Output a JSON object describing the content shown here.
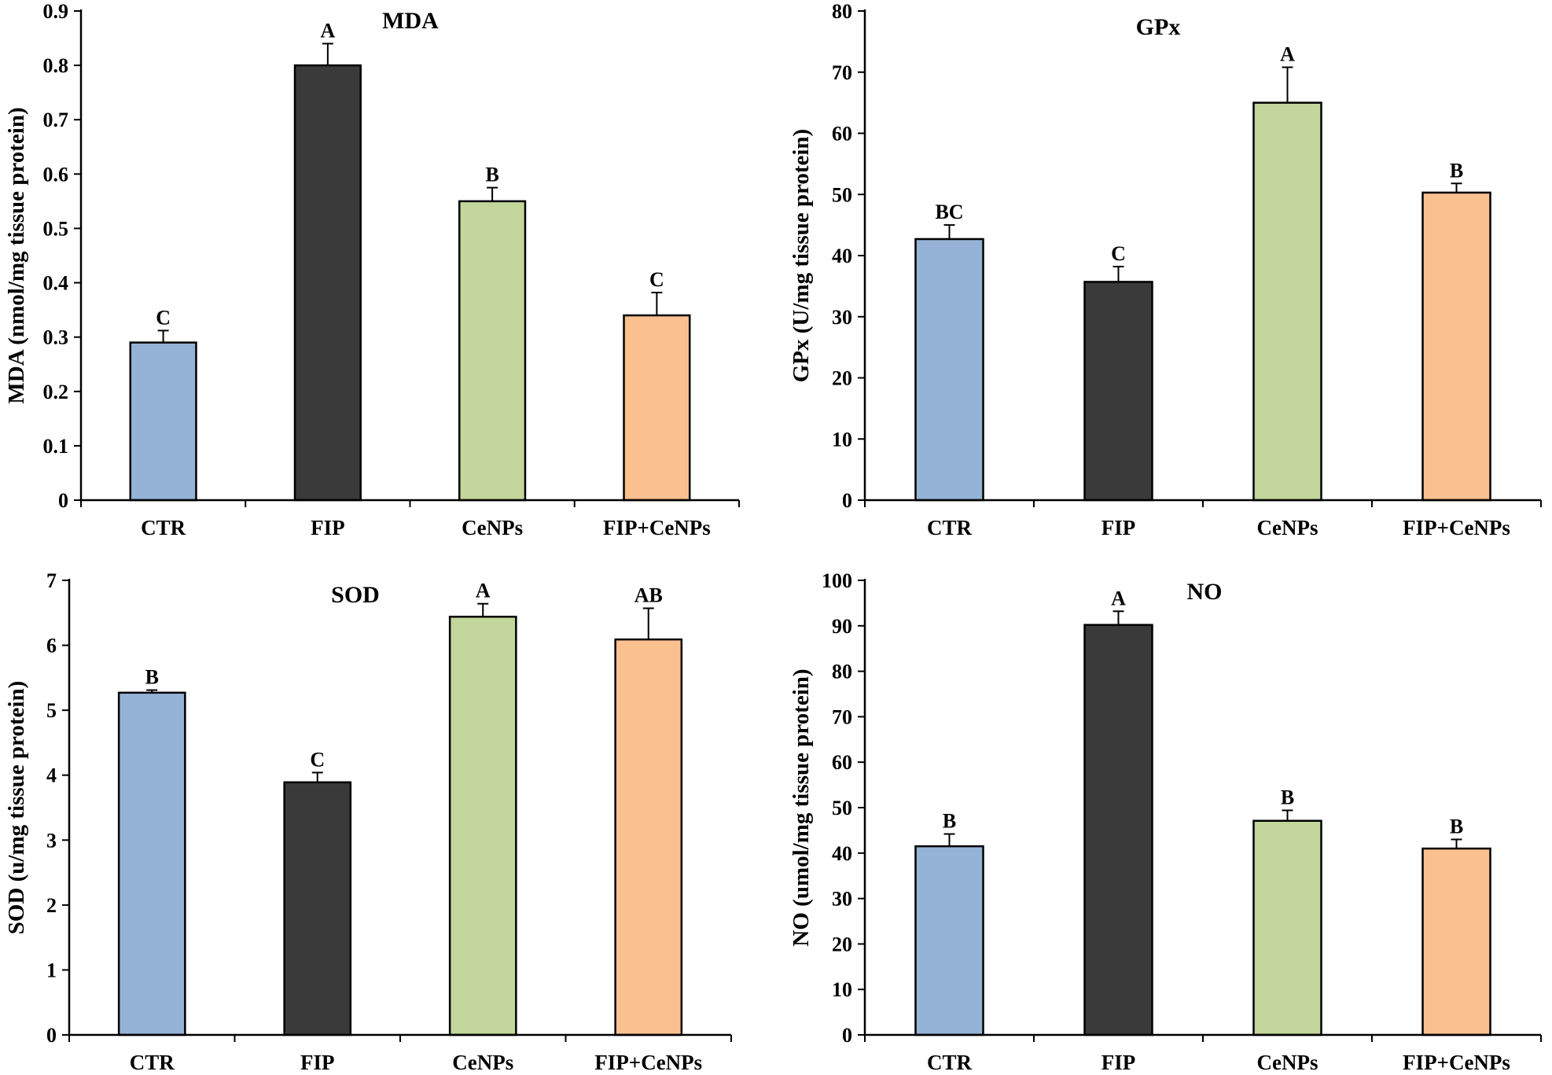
{
  "colors": {
    "CTR": "#95b3d7",
    "FIP": "#3a3a3a",
    "CeNPs": "#c3d69b",
    "FIP+CeNPs": "#fac090",
    "axis": "#000000"
  },
  "chart_data": [
    {
      "type": "bar",
      "title": "MDA",
      "ylabel": "MDA (nmol/mg tissue protein)",
      "xlabel": "",
      "categories": [
        "CTR",
        "FIP",
        "CeNPs",
        "FIP+CeNPs"
      ],
      "values": [
        0.29,
        0.8,
        0.55,
        0.34
      ],
      "errors": [
        0.022,
        0.04,
        0.025,
        0.042
      ],
      "significance": [
        "C",
        "A",
        "B",
        "C"
      ],
      "ylim": [
        0,
        0.9
      ],
      "yticks": [
        0,
        0.1,
        0.2,
        0.3,
        0.4,
        0.5,
        0.6,
        0.7,
        0.8,
        0.9
      ],
      "ytick_labels": [
        "0",
        "0.1",
        "0.2",
        "0.3",
        "0.4",
        "0.5",
        "0.6",
        "0.7",
        "0.8",
        "0.9"
      ]
    },
    {
      "type": "bar",
      "title": "GPx",
      "ylabel": "GPx (U/mg tissue protein)",
      "xlabel": "",
      "categories": [
        "CTR",
        "FIP",
        "CeNPs",
        "FIP+CeNPs"
      ],
      "values": [
        42.7,
        35.7,
        65.0,
        50.3
      ],
      "errors": [
        2.3,
        2.5,
        5.8,
        1.5
      ],
      "significance": [
        "BC",
        "C",
        "A",
        "B"
      ],
      "ylim": [
        0,
        80
      ],
      "yticks": [
        0,
        10,
        20,
        30,
        40,
        50,
        60,
        70,
        80
      ],
      "ytick_labels": [
        "0",
        "10",
        "20",
        "30",
        "40",
        "50",
        "60",
        "70",
        "80"
      ]
    },
    {
      "type": "bar",
      "title": "SOD",
      "ylabel": "SOD (u/mg tissue protein)",
      "xlabel": "",
      "categories": [
        "CTR",
        "FIP",
        "CeNPs",
        "FIP+CeNPs"
      ],
      "values": [
        5.27,
        3.89,
        6.44,
        6.09
      ],
      "errors": [
        0.04,
        0.15,
        0.2,
        0.48
      ],
      "significance": [
        "B",
        "C",
        "A",
        "AB"
      ],
      "ylim": [
        0,
        7
      ],
      "yticks": [
        0,
        1,
        2,
        3,
        4,
        5,
        6,
        7
      ],
      "ytick_labels": [
        "0",
        "1",
        "2",
        "3",
        "4",
        "5",
        "6",
        "7"
      ]
    },
    {
      "type": "bar",
      "title": "NO",
      "ylabel": "NO (umol/mg tissue protein)",
      "xlabel": "",
      "categories": [
        "CTR",
        "FIP",
        "CeNPs",
        "FIP+CeNPs"
      ],
      "values": [
        41.5,
        90.2,
        47.1,
        41.0
      ],
      "errors": [
        2.7,
        3.0,
        2.3,
        2.0
      ],
      "significance": [
        "B",
        "A",
        "B",
        "B"
      ],
      "ylim": [
        0,
        100
      ],
      "yticks": [
        0,
        10,
        20,
        30,
        40,
        50,
        60,
        70,
        80,
        90,
        100
      ],
      "ytick_labels": [
        "0",
        "10",
        "20",
        "30",
        "40",
        "50",
        "60",
        "70",
        "80",
        "90",
        "100"
      ]
    }
  ]
}
